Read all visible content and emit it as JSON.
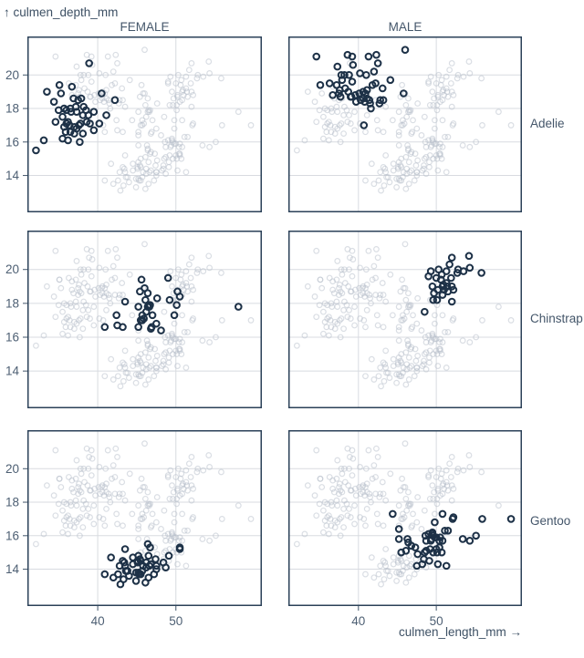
{
  "chart_data": {
    "type": "scatter",
    "title": "",
    "xlabel": "culmen_length_mm →",
    "ylabel": "↑ culmen_depth_mm",
    "faceting": {
      "column_field": "sex",
      "row_field": "species"
    },
    "columns": [
      "FEMALE",
      "MALE"
    ],
    "rows": [
      "Adelie",
      "Chinstrap",
      "Gentoo"
    ],
    "x_ticks": [
      40,
      50
    ],
    "y_ticks": [
      14,
      16,
      18,
      20
    ],
    "x_domain": [
      31,
      61
    ],
    "y_domain": [
      11.8,
      22.3
    ],
    "grid": true,
    "legend_position": "none",
    "style": {
      "highlight_color": "#1d3147",
      "muted_color": "#b6bec9",
      "muted_opacity": 0.5,
      "frame_color": "#2b4158",
      "grid_color": "#d8dbe0",
      "tick_color": "#42566b",
      "tick_label_color": "#4d5f73"
    },
    "series": [
      {
        "species": "Adelie",
        "sex": "FEMALE",
        "points": [
          [
            32.1,
            15.5
          ],
          [
            33.1,
            16.1
          ],
          [
            33.5,
            19.0
          ],
          [
            34.4,
            18.4
          ],
          [
            34.6,
            17.2
          ],
          [
            35.0,
            17.9
          ],
          [
            35.1,
            19.4
          ],
          [
            35.3,
            18.9
          ],
          [
            35.5,
            16.2
          ],
          [
            35.5,
            17.5
          ],
          [
            35.7,
            16.9
          ],
          [
            35.7,
            18.0
          ],
          [
            35.9,
            16.6
          ],
          [
            36.0,
            17.1
          ],
          [
            36.0,
            17.9
          ],
          [
            36.2,
            16.1
          ],
          [
            36.2,
            17.2
          ],
          [
            36.4,
            17.0
          ],
          [
            36.5,
            16.6
          ],
          [
            36.5,
            18.0
          ],
          [
            36.6,
            17.8
          ],
          [
            36.7,
            19.3
          ],
          [
            36.9,
            18.6
          ],
          [
            37.0,
            16.5
          ],
          [
            37.0,
            16.9
          ],
          [
            37.2,
            18.1
          ],
          [
            37.3,
            16.8
          ],
          [
            37.3,
            17.8
          ],
          [
            37.5,
            18.5
          ],
          [
            37.6,
            17.0
          ],
          [
            37.7,
            16.0
          ],
          [
            37.8,
            17.1
          ],
          [
            37.9,
            18.6
          ],
          [
            38.1,
            16.5
          ],
          [
            38.1,
            17.6
          ],
          [
            38.2,
            18.1
          ],
          [
            38.5,
            17.9
          ],
          [
            38.6,
            17.2
          ],
          [
            38.8,
            17.6
          ],
          [
            38.9,
            20.7
          ],
          [
            39.0,
            17.1
          ],
          [
            39.5,
            16.7
          ],
          [
            39.5,
            17.8
          ],
          [
            40.2,
            17.1
          ],
          [
            40.5,
            18.9
          ],
          [
            41.1,
            17.6
          ],
          [
            42.2,
            18.5
          ]
        ]
      },
      {
        "species": "Adelie",
        "sex": "MALE",
        "points": [
          [
            34.6,
            21.1
          ],
          [
            35.1,
            19.4
          ],
          [
            36.3,
            19.5
          ],
          [
            36.7,
            18.8
          ],
          [
            37.2,
            19.4
          ],
          [
            37.3,
            20.5
          ],
          [
            37.5,
            18.9
          ],
          [
            37.6,
            19.1
          ],
          [
            37.7,
            18.7
          ],
          [
            37.8,
            20.0
          ],
          [
            37.9,
            19.7
          ],
          [
            38.2,
            20.0
          ],
          [
            38.3,
            19.2
          ],
          [
            38.6,
            21.2
          ],
          [
            38.7,
            19.0
          ],
          [
            38.8,
            20.0
          ],
          [
            39.0,
            18.7
          ],
          [
            39.1,
            18.7
          ],
          [
            39.2,
            19.6
          ],
          [
            39.2,
            21.1
          ],
          [
            39.3,
            20.6
          ],
          [
            39.6,
            18.8
          ],
          [
            39.7,
            18.4
          ],
          [
            40.1,
            18.9
          ],
          [
            40.2,
            20.1
          ],
          [
            40.3,
            18.5
          ],
          [
            40.6,
            18.6
          ],
          [
            40.6,
            19.0
          ],
          [
            40.7,
            17.0
          ],
          [
            40.8,
            18.4
          ],
          [
            40.9,
            18.9
          ],
          [
            41.0,
            20.0
          ],
          [
            41.1,
            18.6
          ],
          [
            41.1,
            19.1
          ],
          [
            41.3,
            21.1
          ],
          [
            41.4,
            18.5
          ],
          [
            41.5,
            18.3
          ],
          [
            41.6,
            18.0
          ],
          [
            41.8,
            19.4
          ],
          [
            42.0,
            20.2
          ],
          [
            42.2,
            19.5
          ],
          [
            42.3,
            21.2
          ],
          [
            42.5,
            20.7
          ],
          [
            42.7,
            18.3
          ],
          [
            42.8,
            18.5
          ],
          [
            43.1,
            19.2
          ],
          [
            43.2,
            18.5
          ],
          [
            44.1,
            19.7
          ],
          [
            45.8,
            18.9
          ],
          [
            46.0,
            21.5
          ]
        ]
      },
      {
        "species": "Chinstrap",
        "sex": "FEMALE",
        "points": [
          [
            40.9,
            16.6
          ],
          [
            42.4,
            17.3
          ],
          [
            42.5,
            16.7
          ],
          [
            43.2,
            16.6
          ],
          [
            43.5,
            18.1
          ],
          [
            45.2,
            16.6
          ],
          [
            45.2,
            17.8
          ],
          [
            45.4,
            18.7
          ],
          [
            45.5,
            17.0
          ],
          [
            45.6,
            19.4
          ],
          [
            45.7,
            17.0
          ],
          [
            45.7,
            17.3
          ],
          [
            45.9,
            17.1
          ],
          [
            46.0,
            18.9
          ],
          [
            46.1,
            18.2
          ],
          [
            46.2,
            17.5
          ],
          [
            46.4,
            17.8
          ],
          [
            46.4,
            18.6
          ],
          [
            46.5,
            17.9
          ],
          [
            46.6,
            17.8
          ],
          [
            46.7,
            17.9
          ],
          [
            46.8,
            16.5
          ],
          [
            46.9,
            16.6
          ],
          [
            47.0,
            17.3
          ],
          [
            47.5,
            16.8
          ],
          [
            47.6,
            18.3
          ],
          [
            48.1,
            16.4
          ],
          [
            49.0,
            19.5
          ],
          [
            49.2,
            18.2
          ],
          [
            49.8,
            17.3
          ],
          [
            50.1,
            17.9
          ],
          [
            50.2,
            18.7
          ],
          [
            50.5,
            18.4
          ],
          [
            58.0,
            17.8
          ]
        ]
      },
      {
        "species": "Chinstrap",
        "sex": "MALE",
        "points": [
          [
            48.5,
            17.5
          ],
          [
            49.0,
            19.6
          ],
          [
            49.3,
            19.9
          ],
          [
            49.5,
            19.0
          ],
          [
            49.6,
            18.2
          ],
          [
            49.7,
            18.6
          ],
          [
            50.0,
            19.5
          ],
          [
            50.1,
            18.2
          ],
          [
            50.2,
            18.8
          ],
          [
            50.3,
            20.0
          ],
          [
            50.6,
            19.4
          ],
          [
            50.7,
            19.7
          ],
          [
            50.8,
            18.5
          ],
          [
            50.8,
            19.0
          ],
          [
            50.9,
            19.1
          ],
          [
            51.0,
            18.8
          ],
          [
            51.3,
            19.2
          ],
          [
            51.3,
            19.9
          ],
          [
            51.4,
            19.0
          ],
          [
            51.5,
            18.7
          ],
          [
            51.7,
            20.3
          ],
          [
            51.9,
            19.5
          ],
          [
            52.0,
            18.1
          ],
          [
            52.0,
            19.0
          ],
          [
            52.0,
            20.7
          ],
          [
            52.2,
            18.8
          ],
          [
            52.7,
            19.8
          ],
          [
            52.8,
            20.0
          ],
          [
            53.5,
            19.9
          ],
          [
            54.2,
            20.8
          ],
          [
            54.3,
            20.1
          ],
          [
            55.8,
            19.8
          ]
        ]
      },
      {
        "species": "Gentoo",
        "sex": "FEMALE",
        "points": [
          [
            40.9,
            13.7
          ],
          [
            41.7,
            14.7
          ],
          [
            42.0,
            13.5
          ],
          [
            42.6,
            13.7
          ],
          [
            42.8,
            14.2
          ],
          [
            42.9,
            13.1
          ],
          [
            43.2,
            14.5
          ],
          [
            43.3,
            13.4
          ],
          [
            43.4,
            14.4
          ],
          [
            43.5,
            14.2
          ],
          [
            43.5,
            15.2
          ],
          [
            43.6,
            13.9
          ],
          [
            43.8,
            13.9
          ],
          [
            44.0,
            13.6
          ],
          [
            44.5,
            14.3
          ],
          [
            44.5,
            14.7
          ],
          [
            44.9,
            13.3
          ],
          [
            44.9,
            13.8
          ],
          [
            45.1,
            14.4
          ],
          [
            45.1,
            14.5
          ],
          [
            45.2,
            13.8
          ],
          [
            45.2,
            14.8
          ],
          [
            45.3,
            13.7
          ],
          [
            45.4,
            14.6
          ],
          [
            45.5,
            13.7
          ],
          [
            45.5,
            14.5
          ],
          [
            45.7,
            13.9
          ],
          [
            45.8,
            14.2
          ],
          [
            46.1,
            13.2
          ],
          [
            46.2,
            14.1
          ],
          [
            46.2,
            14.4
          ],
          [
            46.4,
            15.5
          ],
          [
            46.5,
            13.5
          ],
          [
            46.5,
            14.8
          ],
          [
            46.6,
            14.2
          ],
          [
            46.7,
            15.3
          ],
          [
            46.8,
            14.3
          ],
          [
            47.2,
            13.7
          ],
          [
            47.4,
            14.6
          ],
          [
            47.5,
            14.0
          ],
          [
            47.5,
            14.2
          ],
          [
            48.4,
            14.4
          ],
          [
            48.7,
            14.1
          ],
          [
            49.1,
            14.8
          ],
          [
            50.5,
            15.2
          ],
          [
            50.5,
            15.3
          ]
        ]
      },
      {
        "species": "Gentoo",
        "sex": "MALE",
        "points": [
          [
            44.4,
            17.3
          ],
          [
            45.2,
            15.8
          ],
          [
            45.2,
            16.4
          ],
          [
            45.5,
            15.0
          ],
          [
            46.1,
            15.1
          ],
          [
            46.3,
            15.8
          ],
          [
            46.4,
            15.6
          ],
          [
            46.8,
            15.4
          ],
          [
            47.3,
            15.3
          ],
          [
            47.5,
            14.2
          ],
          [
            47.6,
            14.9
          ],
          [
            48.2,
            14.3
          ],
          [
            48.4,
            14.6
          ],
          [
            48.5,
            15.0
          ],
          [
            48.6,
            16.0
          ],
          [
            48.7,
            15.1
          ],
          [
            48.7,
            15.7
          ],
          [
            49.0,
            16.1
          ],
          [
            49.1,
            14.5
          ],
          [
            49.2,
            15.2
          ],
          [
            49.3,
            15.7
          ],
          [
            49.4,
            15.8
          ],
          [
            49.5,
            16.1
          ],
          [
            49.5,
            16.2
          ],
          [
            49.6,
            15.0
          ],
          [
            49.6,
            16.0
          ],
          [
            49.8,
            15.9
          ],
          [
            49.8,
            16.8
          ],
          [
            50.0,
            15.2
          ],
          [
            50.0,
            15.9
          ],
          [
            50.1,
            15.0
          ],
          [
            50.2,
            14.3
          ],
          [
            50.4,
            15.3
          ],
          [
            50.4,
            15.7
          ],
          [
            50.5,
            15.9
          ],
          [
            50.7,
            15.0
          ],
          [
            50.8,
            15.7
          ],
          [
            50.8,
            17.3
          ],
          [
            51.1,
            16.3
          ],
          [
            51.3,
            14.2
          ],
          [
            51.5,
            16.3
          ],
          [
            52.1,
            17.0
          ],
          [
            52.2,
            17.1
          ],
          [
            53.4,
            15.8
          ],
          [
            54.3,
            15.7
          ],
          [
            55.1,
            16.0
          ],
          [
            55.9,
            17.0
          ],
          [
            59.6,
            17.0
          ]
        ]
      }
    ]
  }
}
